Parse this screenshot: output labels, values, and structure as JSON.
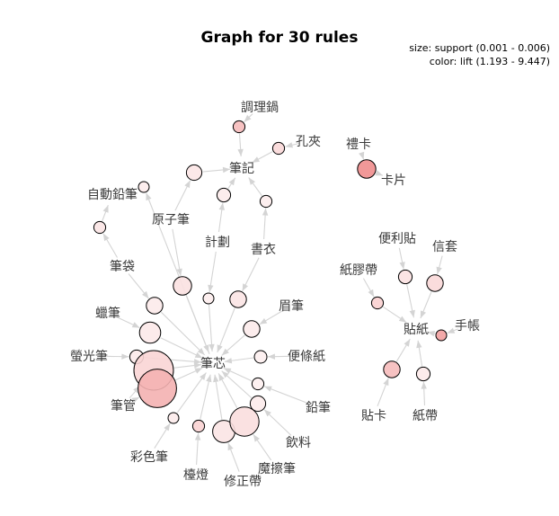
{
  "chart_data": {
    "type": "association-rule-graph",
    "title": "Graph for 30 rules",
    "legend": {
      "size_text": "size: support (0.001 - 0.006)",
      "color_text": "color: lift (1.193 - 9.447)"
    },
    "size_measure": "support",
    "color_measure": "lift",
    "support_range": [
      0.001,
      0.006
    ],
    "lift_range": [
      1.193,
      9.447
    ],
    "items": [
      "調理鍋",
      "孔夾",
      "筆記",
      "禮卡",
      "卡片",
      "自動鉛筆",
      "原子筆",
      "計劃",
      "書衣",
      "便利貼",
      "信套",
      "筆袋",
      "紙膠帶",
      "眉筆",
      "蠟筆",
      "貼紙",
      "手帳",
      "螢光筆",
      "筆芯",
      "便條紙",
      "筆管",
      "鉛筆",
      "飲料",
      "彩色筆",
      "貼卡",
      "紙帶",
      "檯燈",
      "魔擦筆",
      "修正帶"
    ],
    "rules": [
      {
        "lhs": "調理鍋",
        "rhs": "筆記",
        "support": 0.0012,
        "lift": 5.6
      },
      {
        "lhs": "孔夾",
        "rhs": "筆記",
        "support": 0.0012,
        "lift": 3.2
      },
      {
        "lhs": "原子筆",
        "rhs": "筆記",
        "support": 0.0018,
        "lift": 2.0
      },
      {
        "lhs": "計劃",
        "rhs": "筆記",
        "support": 0.0015,
        "lift": 1.6
      },
      {
        "lhs": "書衣",
        "rhs": "筆記",
        "support": 0.0012,
        "lift": 1.4
      },
      {
        "lhs": "禮卡",
        "rhs": "卡片",
        "support": 0.0023,
        "lift": 9.4
      },
      {
        "lhs": "筆袋",
        "rhs": "自動鉛筆",
        "support": 0.0012,
        "lift": 2.2
      },
      {
        "lhs": "筆芯",
        "rhs": "自動鉛筆",
        "support": 0.001,
        "lift": 1.6
      },
      {
        "lhs": "原子筆",
        "rhs": "筆芯",
        "support": 0.0023,
        "lift": 2.4
      },
      {
        "lhs": "計劃",
        "rhs": "筆芯",
        "support": 0.001,
        "lift": 1.4
      },
      {
        "lhs": "書衣",
        "rhs": "筆芯",
        "support": 0.002,
        "lift": 2.2
      },
      {
        "lhs": "筆袋",
        "rhs": "筆芯",
        "support": 0.002,
        "lift": 1.7
      },
      {
        "lhs": "蠟筆",
        "rhs": "筆芯",
        "support": 0.0028,
        "lift": 1.8
      },
      {
        "lhs": "眉筆",
        "rhs": "筆芯",
        "support": 0.002,
        "lift": 1.6
      },
      {
        "lhs": "螢光筆",
        "rhs": "筆芯",
        "support": 0.0015,
        "lift": 1.7
      },
      {
        "lhs": "便條紙",
        "rhs": "筆芯",
        "support": 0.0013,
        "lift": 1.3
      },
      {
        "lhs": "鉛筆",
        "rhs": "筆芯",
        "support": 0.0012,
        "lift": 1.2
      },
      {
        "lhs": "筆管",
        "rhs": "筆芯",
        "support": 0.006,
        "lift": 3.4
      },
      {
        "lhs": "筆管",
        "rhs": "筆芯",
        "support": 0.0058,
        "lift": 6.4
      },
      {
        "lhs": "彩色筆",
        "rhs": "筆芯",
        "support": 0.001,
        "lift": 1.6
      },
      {
        "lhs": "檯燈",
        "rhs": "筆芯",
        "support": 0.0012,
        "lift": 3.6
      },
      {
        "lhs": "修正帶",
        "rhs": "筆芯",
        "support": 0.003,
        "lift": 2.2
      },
      {
        "lhs": "魔擦筆",
        "rhs": "筆芯",
        "support": 0.0042,
        "lift": 2.7
      },
      {
        "lhs": "飲料",
        "rhs": "筆芯",
        "support": 0.0018,
        "lift": 1.6
      },
      {
        "lhs": "便利貼",
        "rhs": "貼紙",
        "support": 0.0015,
        "lift": 2.4
      },
      {
        "lhs": "信套",
        "rhs": "貼紙",
        "support": 0.002,
        "lift": 3.2
      },
      {
        "lhs": "紙膠帶",
        "rhs": "貼紙",
        "support": 0.0012,
        "lift": 3.8
      },
      {
        "lhs": "手帳",
        "rhs": "貼紙",
        "support": 0.001,
        "lift": 7.8
      },
      {
        "lhs": "貼卡",
        "rhs": "貼紙",
        "support": 0.002,
        "lift": 5.6
      },
      {
        "lhs": "紙帶",
        "rhs": "貼紙",
        "support": 0.0015,
        "lift": 1.8
      }
    ],
    "colors": {
      "lift_low": "#fdf0f0",
      "lift_high": "#ef8c8c",
      "edge": "#d4d4d4",
      "node_stroke": "#000000",
      "label": "#3a3a3a"
    }
  }
}
